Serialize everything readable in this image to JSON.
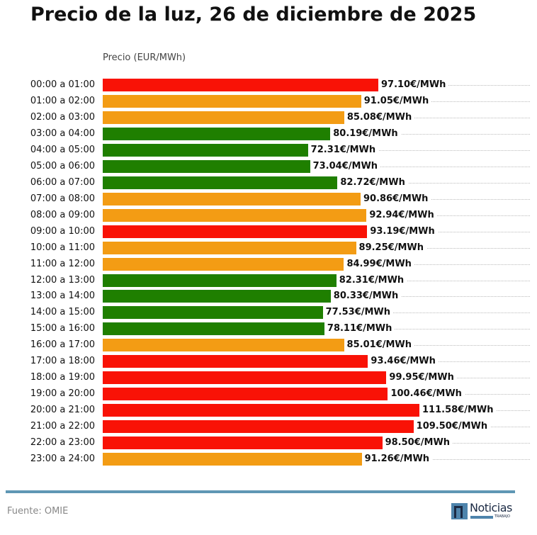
{
  "title": "Precio de la luz, 26 de diciembre de 2025",
  "footer": {
    "source": "Fuente: OMIE",
    "logo_text": "Noticias",
    "logo_sub": "TRABAJO"
  },
  "colors": {
    "high": "#f91206",
    "mid": "#f39c14",
    "low": "#1f7f00",
    "rule": "#5f97b4"
  },
  "chart_data": {
    "type": "bar",
    "orientation": "horizontal",
    "title": "Precio de la luz, 26 de diciembre de 2025",
    "xlabel": "Precio (EUR/MWh)",
    "xlim": [
      0,
      150
    ],
    "grid": "dotted horizontal",
    "unit_suffix": "€/MWh",
    "categories": [
      "00:00 a 01:00",
      "01:00 a 02:00",
      "02:00 a 03:00",
      "03:00 a 04:00",
      "04:00 a 05:00",
      "05:00 a 06:00",
      "06:00 a 07:00",
      "07:00 a 08:00",
      "08:00 a 09:00",
      "09:00 a 10:00",
      "10:00 a 11:00",
      "11:00 a 12:00",
      "12:00 a 13:00",
      "13:00 a 14:00",
      "14:00 a 15:00",
      "15:00 a 16:00",
      "16:00 a 17:00",
      "17:00 a 18:00",
      "18:00 a 19:00",
      "19:00 a 20:00",
      "20:00 a 21:00",
      "21:00 a 22:00",
      "22:00 a 23:00",
      "23:00 a 24:00"
    ],
    "values": [
      97.1,
      91.05,
      85.08,
      80.19,
      72.31,
      73.04,
      82.72,
      90.86,
      92.94,
      93.19,
      89.25,
      84.99,
      82.31,
      80.33,
      77.53,
      78.11,
      85.01,
      93.46,
      99.95,
      100.46,
      111.58,
      109.5,
      98.5,
      91.26
    ],
    "labels": [
      "97.10€/MWh",
      "91.05€/MWh",
      "85.08€/MWh",
      "80.19€/MWh",
      "72.31€/MWh",
      "73.04€/MWh",
      "82.72€/MWh",
      "90.86€/MWh",
      "92.94€/MWh",
      "93.19€/MWh",
      "89.25€/MWh",
      "84.99€/MWh",
      "82.31€/MWh",
      "80.33€/MWh",
      "77.53€/MWh",
      "78.11€/MWh",
      "85.01€/MWh",
      "93.46€/MWh",
      "99.95€/MWh",
      "100.46€/MWh",
      "111.58€/MWh",
      "109.50€/MWh",
      "98.50€/MWh",
      "91.26€/MWh"
    ],
    "levels": [
      "high",
      "mid",
      "mid",
      "low",
      "low",
      "low",
      "low",
      "mid",
      "mid",
      "high",
      "mid",
      "mid",
      "low",
      "low",
      "low",
      "low",
      "mid",
      "high",
      "high",
      "high",
      "high",
      "high",
      "high",
      "mid"
    ]
  }
}
